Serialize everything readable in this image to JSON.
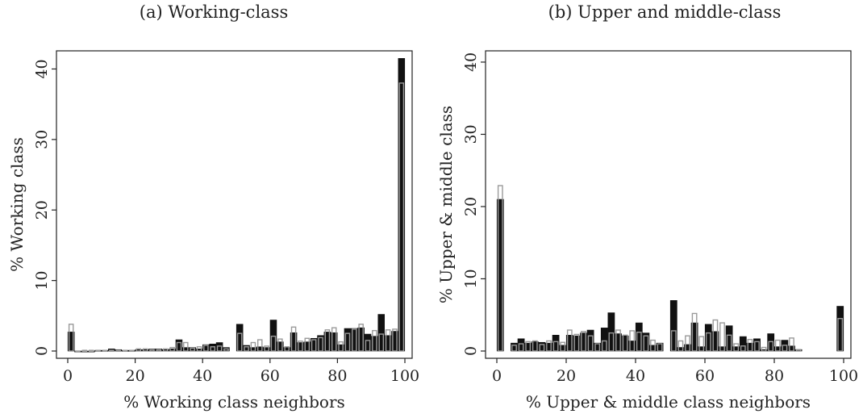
{
  "chart_data": [
    {
      "type": "bar",
      "title": "(a) Working-class",
      "xlabel": "% Working class neighbors",
      "ylabel": "% Working class",
      "xlim": [
        0,
        100
      ],
      "ylim": [
        0,
        42
      ],
      "xticks": [
        0,
        20,
        40,
        60,
        80,
        100
      ],
      "yticks": [
        0,
        10,
        20,
        30,
        40
      ],
      "grid": false,
      "series": [
        {
          "values": [
            {
              "x": 1,
              "y": 2.7
            },
            {
              "x": 3,
              "y": 0
            },
            {
              "x": 5,
              "y": 0
            },
            {
              "x": 7,
              "y": 0
            },
            {
              "x": 9,
              "y": 0.1
            },
            {
              "x": 11,
              "y": 0.1
            },
            {
              "x": 13,
              "y": 0.3
            },
            {
              "x": 15,
              "y": 0.2
            },
            {
              "x": 17,
              "y": 0.1
            },
            {
              "x": 19,
              "y": 0.1
            },
            {
              "x": 21,
              "y": 0.2
            },
            {
              "x": 23,
              "y": 0.2
            },
            {
              "x": 25,
              "y": 0.3
            },
            {
              "x": 27,
              "y": 0.3
            },
            {
              "x": 29,
              "y": 0.2
            },
            {
              "x": 31,
              "y": 0.3
            },
            {
              "x": 33,
              "y": 1.6
            },
            {
              "x": 35,
              "y": 0.5
            },
            {
              "x": 37,
              "y": 0.5
            },
            {
              "x": 39,
              "y": 0.3
            },
            {
              "x": 41,
              "y": 0.9
            },
            {
              "x": 43,
              "y": 1.0
            },
            {
              "x": 45,
              "y": 1.2
            },
            {
              "x": 47,
              "y": 0.5
            },
            {
              "x": 51,
              "y": 3.8
            },
            {
              "x": 53,
              "y": 0.8
            },
            {
              "x": 55,
              "y": 0.5
            },
            {
              "x": 57,
              "y": 0.6
            },
            {
              "x": 59,
              "y": 0.5
            },
            {
              "x": 61,
              "y": 4.4
            },
            {
              "x": 63,
              "y": 1.3
            },
            {
              "x": 65,
              "y": 0.5
            },
            {
              "x": 67,
              "y": 2.6
            },
            {
              "x": 69,
              "y": 1.2
            },
            {
              "x": 71,
              "y": 1.3
            },
            {
              "x": 73,
              "y": 1.8
            },
            {
              "x": 75,
              "y": 2.2
            },
            {
              "x": 77,
              "y": 2.7
            },
            {
              "x": 79,
              "y": 2.6
            },
            {
              "x": 81,
              "y": 0.9
            },
            {
              "x": 83,
              "y": 3.2
            },
            {
              "x": 85,
              "y": 3.2
            },
            {
              "x": 87,
              "y": 3.3
            },
            {
              "x": 89,
              "y": 2.4
            },
            {
              "x": 91,
              "y": 2.1
            },
            {
              "x": 93,
              "y": 5.2
            },
            {
              "x": 95,
              "y": 2.2
            },
            {
              "x": 97,
              "y": 2.8
            },
            {
              "x": 99,
              "y": 41.5
            }
          ]
        },
        {
          "values": [
            {
              "x": 1,
              "y": 3.8
            },
            {
              "x": 3,
              "y": 0
            },
            {
              "x": 5,
              "y": 0.1
            },
            {
              "x": 7,
              "y": 0.1
            },
            {
              "x": 9,
              "y": 0.1
            },
            {
              "x": 11,
              "y": 0.1
            },
            {
              "x": 13,
              "y": 0.1
            },
            {
              "x": 15,
              "y": 0.1
            },
            {
              "x": 17,
              "y": 0.1
            },
            {
              "x": 19,
              "y": 0.1
            },
            {
              "x": 21,
              "y": 0.3
            },
            {
              "x": 23,
              "y": 0.3
            },
            {
              "x": 25,
              "y": 0.2
            },
            {
              "x": 27,
              "y": 0.2
            },
            {
              "x": 29,
              "y": 0.3
            },
            {
              "x": 31,
              "y": 0.5
            },
            {
              "x": 33,
              "y": 1.2
            },
            {
              "x": 35,
              "y": 1.2
            },
            {
              "x": 37,
              "y": 0.4
            },
            {
              "x": 39,
              "y": 0.6
            },
            {
              "x": 41,
              "y": 0.8
            },
            {
              "x": 43,
              "y": 0.6
            },
            {
              "x": 45,
              "y": 0.7
            },
            {
              "x": 47,
              "y": 0.3
            },
            {
              "x": 51,
              "y": 2.5
            },
            {
              "x": 53,
              "y": 0.6
            },
            {
              "x": 55,
              "y": 1.2
            },
            {
              "x": 57,
              "y": 1.6
            },
            {
              "x": 59,
              "y": 0.7
            },
            {
              "x": 61,
              "y": 2.1
            },
            {
              "x": 63,
              "y": 1.7
            },
            {
              "x": 65,
              "y": 0.6
            },
            {
              "x": 67,
              "y": 3.4
            },
            {
              "x": 69,
              "y": 1.4
            },
            {
              "x": 71,
              "y": 1.8
            },
            {
              "x": 73,
              "y": 1.6
            },
            {
              "x": 75,
              "y": 1.9
            },
            {
              "x": 77,
              "y": 3.0
            },
            {
              "x": 79,
              "y": 3.3
            },
            {
              "x": 81,
              "y": 1.3
            },
            {
              "x": 83,
              "y": 2.5
            },
            {
              "x": 85,
              "y": 3.1
            },
            {
              "x": 87,
              "y": 3.8
            },
            {
              "x": 89,
              "y": 1.5
            },
            {
              "x": 91,
              "y": 2.9
            },
            {
              "x": 93,
              "y": 2.4
            },
            {
              "x": 95,
              "y": 3.0
            },
            {
              "x": 97,
              "y": 3.1
            },
            {
              "x": 99,
              "y": 38.0
            }
          ]
        }
      ]
    },
    {
      "type": "bar",
      "title": "(b) Upper and middle-class",
      "xlabel": "% Upper & middle class neighbors",
      "ylabel": "% Upper & middle class",
      "xlim": [
        0,
        100
      ],
      "ylim": [
        0,
        41
      ],
      "xticks": [
        0,
        20,
        40,
        60,
        80,
        100
      ],
      "yticks": [
        0,
        10,
        20,
        30,
        40
      ],
      "grid": false,
      "series": [
        {
          "values": [
            {
              "x": 1,
              "y": 21.0
            },
            {
              "x": 5,
              "y": 1.1
            },
            {
              "x": 7,
              "y": 1.7
            },
            {
              "x": 9,
              "y": 1.1
            },
            {
              "x": 11,
              "y": 1.3
            },
            {
              "x": 13,
              "y": 1.2
            },
            {
              "x": 15,
              "y": 1.1
            },
            {
              "x": 17,
              "y": 2.2
            },
            {
              "x": 19,
              "y": 0.8
            },
            {
              "x": 21,
              "y": 2.2
            },
            {
              "x": 23,
              "y": 2.1
            },
            {
              "x": 25,
              "y": 2.5
            },
            {
              "x": 27,
              "y": 2.9
            },
            {
              "x": 29,
              "y": 1.1
            },
            {
              "x": 31,
              "y": 3.2
            },
            {
              "x": 33,
              "y": 5.3
            },
            {
              "x": 35,
              "y": 2.4
            },
            {
              "x": 37,
              "y": 2.1
            },
            {
              "x": 39,
              "y": 1.4
            },
            {
              "x": 41,
              "y": 3.9
            },
            {
              "x": 43,
              "y": 2.5
            },
            {
              "x": 45,
              "y": 0.8
            },
            {
              "x": 47,
              "y": 1.1
            },
            {
              "x": 51,
              "y": 7.0
            },
            {
              "x": 53,
              "y": 0.5
            },
            {
              "x": 55,
              "y": 0.9
            },
            {
              "x": 57,
              "y": 3.9
            },
            {
              "x": 59,
              "y": 0.6
            },
            {
              "x": 61,
              "y": 3.7
            },
            {
              "x": 63,
              "y": 2.7
            },
            {
              "x": 65,
              "y": 0.6
            },
            {
              "x": 67,
              "y": 3.5
            },
            {
              "x": 69,
              "y": 0.6
            },
            {
              "x": 71,
              "y": 2.0
            },
            {
              "x": 73,
              "y": 1.1
            },
            {
              "x": 75,
              "y": 1.7
            },
            {
              "x": 77,
              "y": 0.2
            },
            {
              "x": 79,
              "y": 2.4
            },
            {
              "x": 81,
              "y": 0.6
            },
            {
              "x": 83,
              "y": 1.5
            },
            {
              "x": 85,
              "y": 0.7
            },
            {
              "x": 87,
              "y": 0.2
            },
            {
              "x": 99,
              "y": 6.2
            }
          ]
        },
        {
          "values": [
            {
              "x": 1,
              "y": 22.9
            },
            {
              "x": 5,
              "y": 0.8
            },
            {
              "x": 7,
              "y": 1.0
            },
            {
              "x": 9,
              "y": 1.3
            },
            {
              "x": 11,
              "y": 1.4
            },
            {
              "x": 13,
              "y": 0.9
            },
            {
              "x": 15,
              "y": 1.4
            },
            {
              "x": 17,
              "y": 1.3
            },
            {
              "x": 19,
              "y": 1.2
            },
            {
              "x": 21,
              "y": 2.9
            },
            {
              "x": 23,
              "y": 2.3
            },
            {
              "x": 25,
              "y": 2.7
            },
            {
              "x": 27,
              "y": 2.1
            },
            {
              "x": 29,
              "y": 1.0
            },
            {
              "x": 31,
              "y": 1.4
            },
            {
              "x": 33,
              "y": 2.5
            },
            {
              "x": 35,
              "y": 2.9
            },
            {
              "x": 37,
              "y": 2.2
            },
            {
              "x": 39,
              "y": 2.8
            },
            {
              "x": 41,
              "y": 2.6
            },
            {
              "x": 43,
              "y": 2.1
            },
            {
              "x": 45,
              "y": 1.5
            },
            {
              "x": 47,
              "y": 1.0
            },
            {
              "x": 51,
              "y": 2.8
            },
            {
              "x": 53,
              "y": 1.4
            },
            {
              "x": 55,
              "y": 2.1
            },
            {
              "x": 57,
              "y": 5.2
            },
            {
              "x": 59,
              "y": 2.0
            },
            {
              "x": 61,
              "y": 2.5
            },
            {
              "x": 63,
              "y": 4.3
            },
            {
              "x": 65,
              "y": 3.9
            },
            {
              "x": 67,
              "y": 2.2
            },
            {
              "x": 69,
              "y": 1.0
            },
            {
              "x": 71,
              "y": 0.7
            },
            {
              "x": 73,
              "y": 1.6
            },
            {
              "x": 75,
              "y": 1.3
            },
            {
              "x": 77,
              "y": 0.5
            },
            {
              "x": 79,
              "y": 1.3
            },
            {
              "x": 81,
              "y": 1.5
            },
            {
              "x": 83,
              "y": 0.8
            },
            {
              "x": 85,
              "y": 1.8
            },
            {
              "x": 87,
              "y": 0.2
            },
            {
              "x": 99,
              "y": 4.5
            }
          ]
        }
      ]
    }
  ]
}
